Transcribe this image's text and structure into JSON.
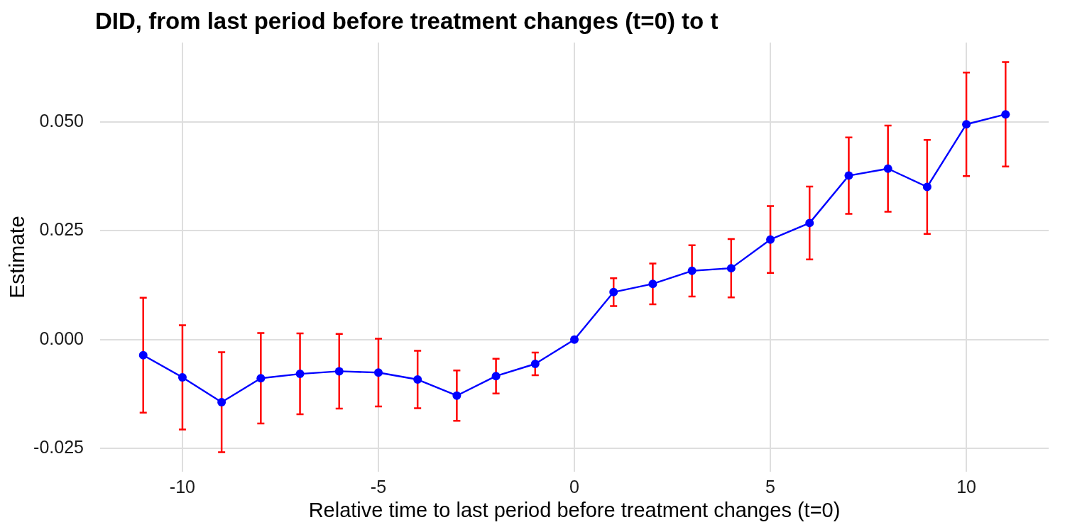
{
  "chart_data": {
    "type": "line",
    "title": "DID, from last period before treatment changes (t=0) to t",
    "xlabel": "Relative time to last period before treatment changes (t=0)",
    "ylabel": "Estimate",
    "x": [
      -11,
      -10,
      -9,
      -8,
      -7,
      -6,
      -5,
      -4,
      -3,
      -2,
      -1,
      0,
      1,
      2,
      3,
      4,
      5,
      6,
      7,
      8,
      9,
      10,
      11
    ],
    "values": [
      -0.0036,
      -0.0087,
      -0.0144,
      -0.0089,
      -0.0079,
      -0.0073,
      -0.0076,
      -0.0092,
      -0.0129,
      -0.0084,
      -0.0056,
      0,
      0.0109,
      0.0128,
      0.0158,
      0.0164,
      0.023,
      0.0268,
      0.0377,
      0.0393,
      0.0351,
      0.0495,
      0.0518
    ],
    "errors": [
      0.0132,
      0.012,
      0.0115,
      0.0104,
      0.0093,
      0.0086,
      0.0078,
      0.0066,
      0.0058,
      0.004,
      0.0026,
      null,
      0.0032,
      0.0047,
      0.0059,
      0.0067,
      0.0077,
      0.0084,
      0.0088,
      0.0099,
      0.0108,
      0.0119,
      0.012
    ],
    "color": "#0000ff",
    "marker": "circle",
    "line_style": "solid",
    "grid": true,
    "legend": false,
    "xlim": [
      -12.1,
      12.1
    ],
    "xticks": [
      -10,
      -5,
      0,
      5,
      10
    ],
    "ylim": [
      -0.0304,
      0.0683
    ],
    "yticks": [
      {
        "value": -0.025,
        "label": "-0.025"
      },
      {
        "value": 0,
        "label": "0.000"
      },
      {
        "value": 0.025,
        "label": "0.025"
      },
      {
        "value": 0.05,
        "label": "0.050"
      }
    ]
  }
}
